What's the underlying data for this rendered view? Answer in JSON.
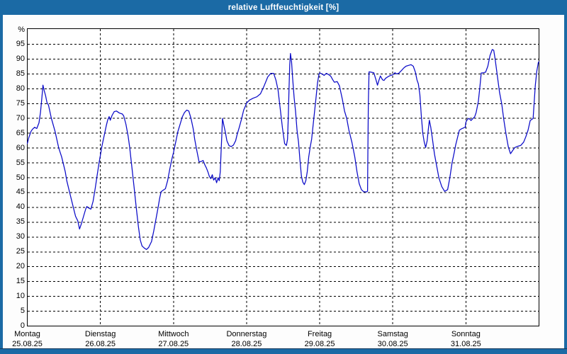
{
  "window": {
    "title": "relative Luftfeuchtigkeit [%]",
    "frame_color": "#1b6aa5",
    "title_text_color": "#ffffff"
  },
  "chart_data": {
    "type": "line",
    "title": "relative Luftfeuchtigkeit [%]",
    "unit_label": "%",
    "ylabel": "%",
    "ylim": [
      0,
      100
    ],
    "y_ticks": [
      0,
      5,
      10,
      15,
      20,
      25,
      30,
      35,
      40,
      45,
      50,
      55,
      60,
      65,
      70,
      75,
      80,
      85,
      90,
      95
    ],
    "grid": "dashed",
    "legend": "none",
    "line_color": "#0a0ac8",
    "grid_color": "#000000",
    "x_axis": {
      "days": [
        {
          "name": "Montag",
          "date": "25.08.25"
        },
        {
          "name": "Dienstag",
          "date": "26.08.25"
        },
        {
          "name": "Mittwoch",
          "date": "27.08.25"
        },
        {
          "name": "Donnerstag",
          "date": "28.08.25"
        },
        {
          "name": "Freitag",
          "date": "29.08.25"
        },
        {
          "name": "Samstag",
          "date": "30.08.25"
        },
        {
          "name": "Sonntag",
          "date": "31.08.25"
        }
      ]
    },
    "series": [
      {
        "name": "relative Luftfeuchtigkeit",
        "color": "#0a0ac8",
        "points": [
          [
            0.0,
            61.5
          ],
          [
            0.02,
            63.5
          ],
          [
            0.05,
            65.6
          ],
          [
            0.07,
            66.3
          ],
          [
            0.1,
            67.0
          ],
          [
            0.13,
            66.6
          ],
          [
            0.16,
            68.5
          ],
          [
            0.18,
            72.0
          ],
          [
            0.2,
            77.0
          ],
          [
            0.214,
            81.2
          ],
          [
            0.23,
            79.5
          ],
          [
            0.25,
            77.7
          ],
          [
            0.27,
            75.3
          ],
          [
            0.29,
            74.5
          ],
          [
            0.33,
            70.0
          ],
          [
            0.38,
            65.6
          ],
          [
            0.43,
            60.0
          ],
          [
            0.47,
            57.0
          ],
          [
            0.52,
            52.0
          ],
          [
            0.54,
            49.0
          ],
          [
            0.58,
            45.0
          ],
          [
            0.62,
            41.0
          ],
          [
            0.66,
            37.0
          ],
          [
            0.69,
            35.5
          ],
          [
            0.715,
            32.7
          ],
          [
            0.74,
            34.5
          ],
          [
            0.77,
            37.0
          ],
          [
            0.8,
            39.5
          ],
          [
            0.815,
            40.3
          ],
          [
            0.84,
            39.8
          ],
          [
            0.87,
            39.4
          ],
          [
            0.9,
            42.0
          ],
          [
            0.93,
            46.5
          ],
          [
            0.96,
            51.5
          ],
          [
            0.985,
            55.5
          ],
          [
            1.0,
            57.5
          ],
          [
            1.02,
            60.5
          ],
          [
            1.05,
            64.0
          ],
          [
            1.08,
            67.5
          ],
          [
            1.1,
            69.5
          ],
          [
            1.12,
            70.6
          ],
          [
            1.135,
            69.4
          ],
          [
            1.16,
            71.0
          ],
          [
            1.19,
            72.3
          ],
          [
            1.22,
            72.5
          ],
          [
            1.26,
            71.8
          ],
          [
            1.3,
            71.5
          ],
          [
            1.32,
            70.8
          ],
          [
            1.35,
            68.0
          ],
          [
            1.38,
            64.0
          ],
          [
            1.4,
            60.4
          ],
          [
            1.43,
            53.7
          ],
          [
            1.46,
            47.0
          ],
          [
            1.49,
            40.0
          ],
          [
            1.52,
            33.5
          ],
          [
            1.545,
            29.0
          ],
          [
            1.57,
            27.0
          ],
          [
            1.6,
            26.3
          ],
          [
            1.63,
            25.8
          ],
          [
            1.66,
            26.5
          ],
          [
            1.7,
            28.5
          ],
          [
            1.73,
            32.0
          ],
          [
            1.76,
            36.0
          ],
          [
            1.79,
            40.0
          ],
          [
            1.81,
            43.0
          ],
          [
            1.83,
            45.3
          ],
          [
            1.86,
            45.8
          ],
          [
            1.89,
            46.3
          ],
          [
            1.92,
            49.0
          ],
          [
            1.95,
            53.0
          ],
          [
            1.98,
            56.5
          ],
          [
            2.0,
            58.5
          ],
          [
            2.03,
            62.0
          ],
          [
            2.06,
            65.6
          ],
          [
            2.09,
            68.0
          ],
          [
            2.12,
            70.5
          ],
          [
            2.15,
            72.0
          ],
          [
            2.18,
            72.8
          ],
          [
            2.21,
            72.5
          ],
          [
            2.24,
            70.0
          ],
          [
            2.27,
            66.5
          ],
          [
            2.29,
            63.0
          ],
          [
            2.32,
            59.0
          ],
          [
            2.35,
            55.3
          ],
          [
            2.38,
            55.5
          ],
          [
            2.405,
            55.8
          ],
          [
            2.43,
            54.3
          ],
          [
            2.45,
            53.3
          ],
          [
            2.47,
            52.0
          ],
          [
            2.49,
            50.5
          ],
          [
            2.51,
            49.7
          ],
          [
            2.53,
            51.0
          ],
          [
            2.55,
            49.2
          ],
          [
            2.57,
            50.0
          ],
          [
            2.59,
            48.3
          ],
          [
            2.61,
            50.0
          ],
          [
            2.625,
            49.0
          ],
          [
            2.64,
            52.0
          ],
          [
            2.65,
            58.0
          ],
          [
            2.66,
            64.0
          ],
          [
            2.67,
            70.0
          ],
          [
            2.69,
            67.5
          ],
          [
            2.71,
            65.3
          ],
          [
            2.73,
            62.5
          ],
          [
            2.76,
            60.8
          ],
          [
            2.79,
            60.5
          ],
          [
            2.82,
            61.0
          ],
          [
            2.85,
            62.5
          ],
          [
            2.87,
            64.5
          ],
          [
            2.9,
            67.0
          ],
          [
            2.93,
            69.7
          ],
          [
            2.96,
            72.8
          ],
          [
            2.99,
            74.5
          ],
          [
            3.0,
            75.2
          ],
          [
            3.04,
            76.2
          ],
          [
            3.09,
            76.8
          ],
          [
            3.14,
            77.3
          ],
          [
            3.19,
            78.3
          ],
          [
            3.24,
            81.0
          ],
          [
            3.29,
            84.0
          ],
          [
            3.33,
            85.2
          ],
          [
            3.37,
            85.2
          ],
          [
            3.4,
            83.0
          ],
          [
            3.43,
            79.6
          ],
          [
            3.46,
            73.2
          ],
          [
            3.49,
            66.8
          ],
          [
            3.52,
            61.5
          ],
          [
            3.545,
            60.9
          ],
          [
            3.56,
            63.0
          ],
          [
            3.57,
            70.0
          ],
          [
            3.58,
            80.0
          ],
          [
            3.59,
            88.0
          ],
          [
            3.6,
            91.9
          ],
          [
            3.615,
            89.0
          ],
          [
            3.63,
            83.5
          ],
          [
            3.65,
            77.0
          ],
          [
            3.67,
            72.4
          ],
          [
            3.69,
            66.0
          ],
          [
            3.71,
            62.0
          ],
          [
            3.73,
            56.0
          ],
          [
            3.75,
            50.5
          ],
          [
            3.77,
            48.5
          ],
          [
            3.79,
            47.7
          ],
          [
            3.81,
            49.0
          ],
          [
            3.83,
            52.0
          ],
          [
            3.85,
            57.0
          ],
          [
            3.87,
            60.4
          ],
          [
            3.89,
            63.0
          ],
          [
            3.92,
            70.0
          ],
          [
            3.95,
            77.0
          ],
          [
            3.97,
            82.0
          ],
          [
            3.99,
            84.8
          ],
          [
            4.0,
            85.3
          ],
          [
            4.03,
            85.0
          ],
          [
            4.06,
            84.5
          ],
          [
            4.09,
            85.2
          ],
          [
            4.12,
            84.8
          ],
          [
            4.15,
            84.3
          ],
          [
            4.18,
            83.0
          ],
          [
            4.2,
            82.2
          ],
          [
            4.24,
            82.4
          ],
          [
            4.27,
            81.0
          ],
          [
            4.31,
            76.5
          ],
          [
            4.34,
            72.5
          ],
          [
            4.37,
            70.0
          ],
          [
            4.4,
            66.0
          ],
          [
            4.44,
            62.0
          ],
          [
            4.48,
            57.0
          ],
          [
            4.51,
            52.0
          ],
          [
            4.54,
            48.0
          ],
          [
            4.57,
            46.0
          ],
          [
            4.6,
            45.3
          ],
          [
            4.64,
            45.2
          ],
          [
            4.655,
            45.5
          ],
          [
            4.66,
            60.0
          ],
          [
            4.665,
            75.0
          ],
          [
            4.675,
            85.7
          ],
          [
            4.7,
            85.6
          ],
          [
            4.74,
            85.4
          ],
          [
            4.77,
            83.0
          ],
          [
            4.79,
            81.2
          ],
          [
            4.81,
            82.8
          ],
          [
            4.83,
            84.3
          ],
          [
            4.86,
            83.0
          ],
          [
            4.88,
            82.8
          ],
          [
            4.9,
            83.5
          ],
          [
            4.93,
            84.0
          ],
          [
            4.96,
            84.4
          ],
          [
            5.0,
            84.7
          ],
          [
            5.03,
            85.4
          ],
          [
            5.05,
            85.0
          ],
          [
            5.08,
            85.2
          ],
          [
            5.12,
            86.2
          ],
          [
            5.15,
            87.0
          ],
          [
            5.18,
            87.6
          ],
          [
            5.22,
            87.9
          ],
          [
            5.25,
            88.1
          ],
          [
            5.28,
            87.6
          ],
          [
            5.31,
            85.5
          ],
          [
            5.33,
            83.0
          ],
          [
            5.35,
            81.6
          ],
          [
            5.37,
            78.0
          ],
          [
            5.39,
            71.0
          ],
          [
            5.41,
            65.0
          ],
          [
            5.43,
            62.0
          ],
          [
            5.45,
            60.2
          ],
          [
            5.47,
            62.5
          ],
          [
            5.485,
            66.0
          ],
          [
            5.5,
            69.4
          ],
          [
            5.52,
            67.0
          ],
          [
            5.54,
            63.5
          ],
          [
            5.57,
            58.0
          ],
          [
            5.6,
            54.0
          ],
          [
            5.63,
            50.0
          ],
          [
            5.67,
            47.0
          ],
          [
            5.71,
            45.4
          ],
          [
            5.75,
            46.0
          ],
          [
            5.78,
            50.0
          ],
          [
            5.81,
            55.0
          ],
          [
            5.84,
            58.5
          ],
          [
            5.86,
            61.0
          ],
          [
            5.89,
            64.0
          ],
          [
            5.91,
            66.0
          ],
          [
            5.94,
            66.5
          ],
          [
            5.97,
            66.8
          ],
          [
            5.99,
            67.0
          ],
          [
            6.0,
            68.8
          ],
          [
            6.02,
            69.6
          ],
          [
            6.04,
            70.0
          ],
          [
            6.07,
            69.3
          ],
          [
            6.09,
            69.8
          ],
          [
            6.12,
            70.5
          ],
          [
            6.14,
            72.0
          ],
          [
            6.17,
            75.7
          ],
          [
            6.19,
            80.4
          ],
          [
            6.21,
            85.3
          ],
          [
            6.24,
            85.4
          ],
          [
            6.27,
            85.6
          ],
          [
            6.3,
            87.6
          ],
          [
            6.33,
            91.2
          ],
          [
            6.36,
            93.2
          ],
          [
            6.38,
            93.0
          ],
          [
            6.4,
            90.0
          ],
          [
            6.43,
            84.4
          ],
          [
            6.46,
            78.8
          ],
          [
            6.49,
            74.9
          ],
          [
            6.52,
            69.3
          ],
          [
            6.55,
            64.5
          ],
          [
            6.58,
            60.4
          ],
          [
            6.61,
            58.1
          ],
          [
            6.64,
            59.2
          ],
          [
            6.67,
            60.2
          ],
          [
            6.71,
            60.6
          ],
          [
            6.75,
            60.9
          ],
          [
            6.79,
            62.0
          ],
          [
            6.82,
            63.8
          ],
          [
            6.85,
            66.0
          ],
          [
            6.88,
            69.3
          ],
          [
            6.92,
            70.0
          ],
          [
            6.95,
            81.2
          ],
          [
            6.97,
            85.9
          ],
          [
            6.99,
            88.8
          ],
          [
            7.0,
            89.1
          ]
        ]
      }
    ]
  }
}
